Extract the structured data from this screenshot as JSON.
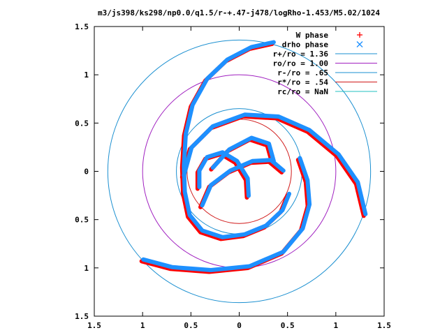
{
  "chart_data": {
    "type": "scatter",
    "title": "m3/js398/ks298/np0.0/q1.5/r-+.47-j478/logRho-1.453/M5.02/1024",
    "xlim": [
      -1.5,
      1.5
    ],
    "ylim": [
      -1.5,
      1.5
    ],
    "x_tick_labels": [
      "1.5",
      "1",
      "0.5",
      "0",
      "0.5",
      "1",
      "1.5"
    ],
    "y_tick_labels": [
      "1.5",
      "1",
      "0.5",
      "0",
      "0.5",
      "1",
      "1.5"
    ],
    "grid": false,
    "legend_position": "top-right",
    "series": [
      {
        "name": "W phase",
        "kind": "points",
        "marker": "+",
        "color": "#ff0000"
      },
      {
        "name": "drho phase",
        "kind": "points",
        "marker": "x",
        "color": "#1e90ff"
      },
      {
        "name": "r+/ro = 1.36",
        "kind": "circle",
        "radius": 1.36,
        "color": "#1a8fd0"
      },
      {
        "name": "ro/ro = 1.00",
        "kind": "circle",
        "radius": 1.0,
        "color": "#a020c0"
      },
      {
        "name": "r-/ro = .65",
        "kind": "circle",
        "radius": 0.65,
        "color": "#1a8fd0"
      },
      {
        "name": "r*/ro = .54",
        "kind": "circle",
        "radius": 0.54,
        "color": "#d01818"
      },
      {
        "name": "rc/ro = NaN",
        "kind": "circle",
        "radius": null,
        "color": "#20c0c0"
      }
    ],
    "spiral_arms": [
      {
        "points": [
          [
            0.35,
            1.33
          ],
          [
            0.12,
            1.28
          ],
          [
            -0.13,
            1.15
          ],
          [
            -0.34,
            0.95
          ],
          [
            -0.49,
            0.68
          ],
          [
            -0.56,
            0.38
          ],
          [
            -0.58,
            0.05
          ],
          [
            -0.57,
            -0.22
          ],
          [
            -0.52,
            -0.46
          ],
          [
            -0.39,
            -0.62
          ],
          [
            -0.18,
            -0.69
          ],
          [
            0.05,
            -0.66
          ],
          [
            0.27,
            -0.57
          ],
          [
            0.44,
            -0.41
          ],
          [
            0.51,
            -0.24
          ]
        ]
      },
      {
        "points": [
          [
            -0.39,
            -0.36
          ],
          [
            -0.3,
            -0.15
          ],
          [
            -0.1,
            0.0
          ],
          [
            0.13,
            0.1
          ],
          [
            0.32,
            0.11
          ],
          [
            0.45,
            0.0
          ]
        ]
      },
      {
        "points": [
          [
            -1.0,
            -0.92
          ],
          [
            -0.7,
            -1.0
          ],
          [
            -0.3,
            -1.03
          ],
          [
            0.1,
            -0.99
          ],
          [
            0.45,
            -0.84
          ],
          [
            0.65,
            -0.6
          ],
          [
            0.72,
            -0.35
          ],
          [
            0.7,
            -0.1
          ],
          [
            0.62,
            0.13
          ]
        ]
      },
      {
        "points": [
          [
            -0.28,
            0.03
          ],
          [
            -0.11,
            0.22
          ],
          [
            0.12,
            0.34
          ],
          [
            0.3,
            0.28
          ],
          [
            0.35,
            0.1
          ]
        ]
      },
      {
        "points": [
          [
            1.3,
            -0.45
          ],
          [
            1.22,
            -0.12
          ],
          [
            1.02,
            0.17
          ],
          [
            0.72,
            0.42
          ],
          [
            0.4,
            0.56
          ],
          [
            0.05,
            0.58
          ],
          [
            -0.28,
            0.46
          ],
          [
            -0.5,
            0.24
          ],
          [
            -0.58,
            -0.05
          ]
        ]
      },
      {
        "points": [
          [
            0.09,
            -0.26
          ],
          [
            0.08,
            -0.08
          ],
          [
            -0.03,
            0.1
          ],
          [
            -0.18,
            0.19
          ],
          [
            -0.34,
            0.14
          ],
          [
            -0.42,
            0.0
          ],
          [
            -0.42,
            -0.17
          ]
        ]
      }
    ]
  }
}
